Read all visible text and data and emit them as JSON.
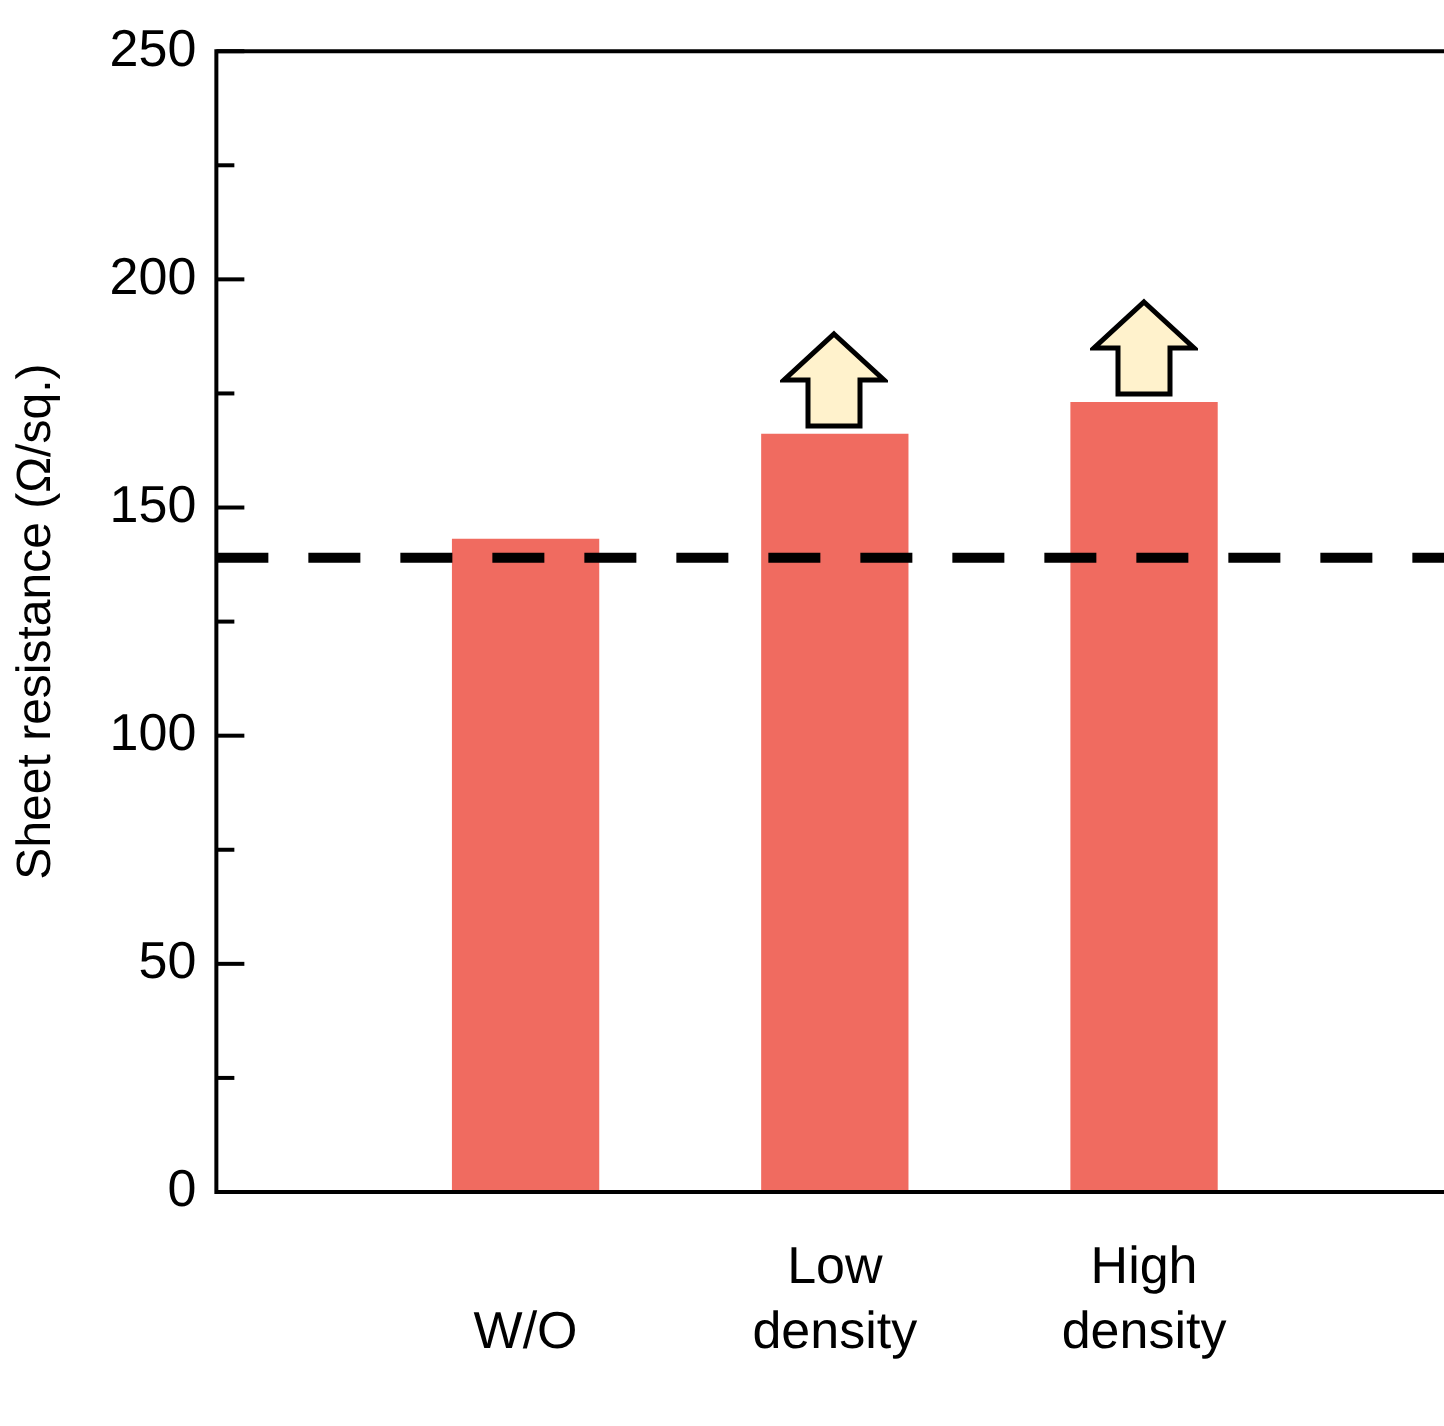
{
  "chart_data": {
    "type": "bar",
    "ylabel": "Sheet resistance (Ω/sq.)",
    "categories": [
      "W/O",
      "Low density",
      "High density"
    ],
    "values": [
      143,
      166,
      173
    ],
    "color": "#f06b60",
    "ylim": [
      0,
      250
    ],
    "yticks": [
      0,
      {
        "value": 25,
        "label": null
      },
      50,
      {
        "value": 75,
        "label": null
      },
      100,
      {
        "value": 125,
        "label": null
      },
      150,
      {
        "value": 175,
        "label": null
      },
      200,
      {
        "value": 225,
        "label": null
      },
      250
    ],
    "ref_lines": [
      {
        "axis": "y",
        "value": 139,
        "color": "#000000",
        "line_style": "dashed"
      }
    ],
    "grid": false,
    "legend": false
  }
}
